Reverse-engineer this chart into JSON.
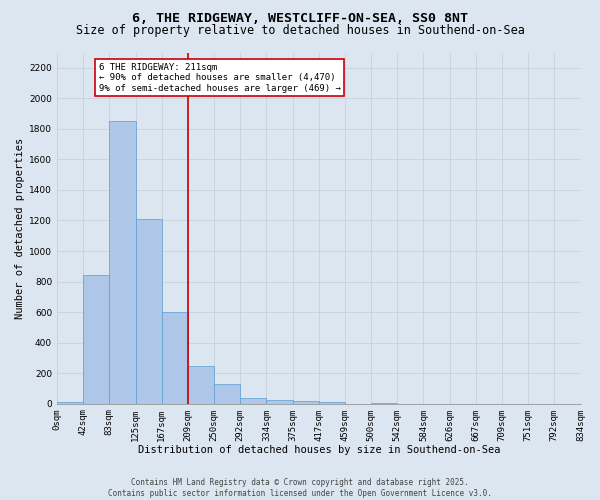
{
  "title1": "6, THE RIDGEWAY, WESTCLIFF-ON-SEA, SS0 8NT",
  "title2": "Size of property relative to detached houses in Southend-on-Sea",
  "xlabel": "Distribution of detached houses by size in Southend-on-Sea",
  "ylabel": "Number of detached properties",
  "bar_values": [
    10,
    840,
    1850,
    1210,
    600,
    250,
    130,
    35,
    25,
    15,
    10,
    0,
    5,
    0,
    0,
    0,
    0,
    0,
    0,
    0
  ],
  "bin_labels": [
    "0sqm",
    "42sqm",
    "83sqm",
    "125sqm",
    "167sqm",
    "209sqm",
    "250sqm",
    "292sqm",
    "334sqm",
    "375sqm",
    "417sqm",
    "459sqm",
    "500sqm",
    "542sqm",
    "584sqm",
    "626sqm",
    "667sqm",
    "709sqm",
    "751sqm",
    "792sqm",
    "834sqm"
  ],
  "bar_color": "#aec6e8",
  "bar_edge_color": "#5a9fd4",
  "vline_x": 5.0,
  "vline_color": "#cc0000",
  "annotation_text": "6 THE RIDGEWAY: 211sqm\n← 90% of detached houses are smaller (4,470)\n9% of semi-detached houses are larger (469) →",
  "annotation_box_color": "#ffffff",
  "annotation_box_edge": "#cc0000",
  "ylim": [
    0,
    2300
  ],
  "yticks": [
    0,
    200,
    400,
    600,
    800,
    1000,
    1200,
    1400,
    1600,
    1800,
    2000,
    2200
  ],
  "grid_color": "#c8d0dc",
  "bg_color": "#dce6f0",
  "footer1": "Contains HM Land Registry data © Crown copyright and database right 2025.",
  "footer2": "Contains public sector information licensed under the Open Government Licence v3.0.",
  "title1_fontsize": 9.5,
  "title2_fontsize": 8.5,
  "xlabel_fontsize": 7.5,
  "ylabel_fontsize": 7.5,
  "tick_fontsize": 6.5,
  "annot_fontsize": 6.5,
  "footer_fontsize": 5.5
}
